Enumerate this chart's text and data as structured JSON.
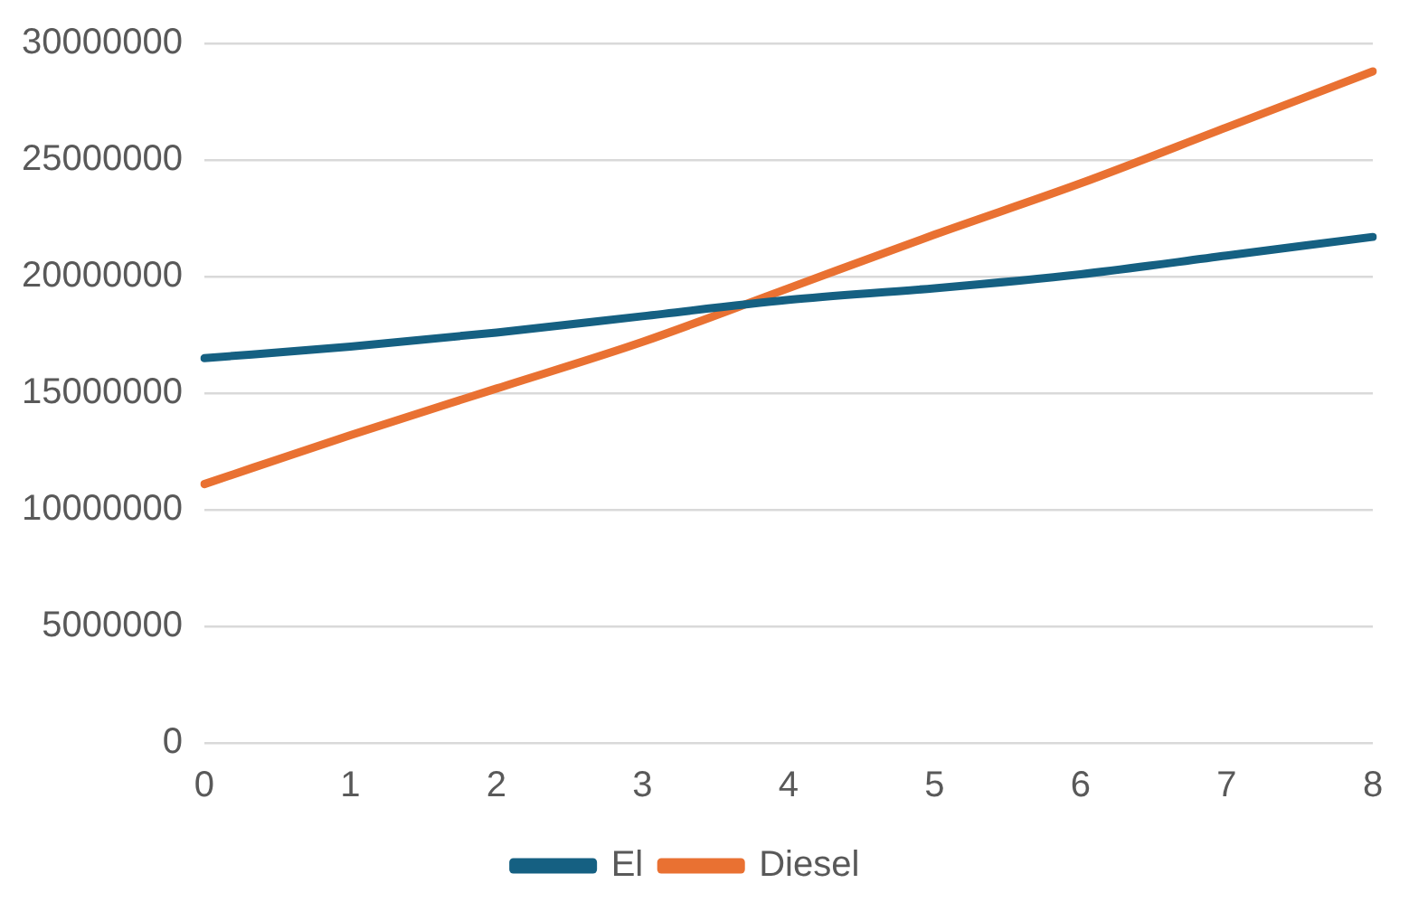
{
  "chart_data": {
    "type": "line",
    "categories": [
      "0",
      "1",
      "2",
      "3",
      "4",
      "5",
      "6",
      "7",
      "8"
    ],
    "series": [
      {
        "name": "El",
        "color": "#156082",
        "values": [
          16500000,
          17000000,
          17600000,
          18300000,
          19000000,
          19500000,
          20100000,
          20900000,
          21700000
        ]
      },
      {
        "name": "Diesel",
        "color": "#e97132",
        "values": [
          11100000,
          13200000,
          15200000,
          17200000,
          19500000,
          21800000,
          24000000,
          26400000,
          28800000
        ]
      }
    ],
    "ylim": [
      0,
      30000000
    ],
    "yticks": [
      0,
      5000000,
      10000000,
      15000000,
      20000000,
      25000000,
      30000000
    ],
    "grid": "y",
    "legend": "bottom",
    "marker": "none",
    "line_style": "solid"
  }
}
